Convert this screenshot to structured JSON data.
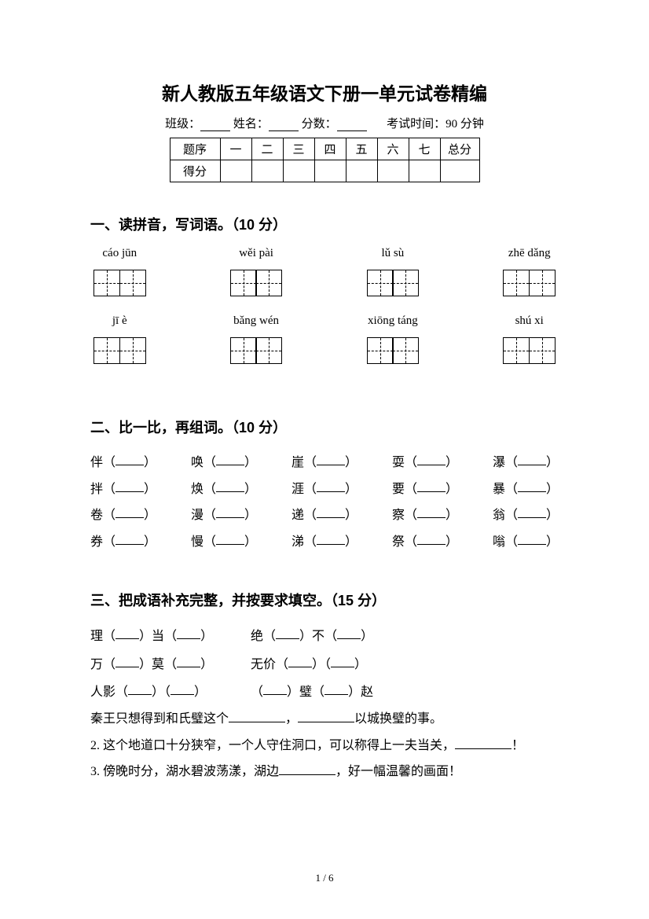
{
  "title": "新人教版五年级语文下册一单元试卷精编",
  "info": {
    "class_label": "班级：",
    "name_label": "姓名：",
    "score_label": "分数：",
    "exam_time": "考试时间：90 分钟"
  },
  "score_table": {
    "row1": [
      "题序",
      "一",
      "二",
      "三",
      "四",
      "五",
      "六",
      "七",
      "总分"
    ],
    "row2_label": "得分"
  },
  "section1": {
    "title": "一、读拼音，写词语。（10 分）",
    "row1": [
      "cáo jūn",
      "wěi pài",
      "lǔ sù",
      "zhē dǎng"
    ],
    "row2": [
      "jī è",
      "bǎng wén",
      "xiōng táng",
      "shú xi"
    ]
  },
  "section2": {
    "title": "二、比一比，再组词。（10 分）",
    "rows": [
      [
        "伴",
        "唤",
        "崖",
        "耍",
        "瀑"
      ],
      [
        "拌",
        "焕",
        "涯",
        "要",
        "暴"
      ],
      [
        "卷",
        "漫",
        "递",
        "察",
        "翁"
      ],
      [
        "券",
        "慢",
        "涕",
        "祭",
        "嗡"
      ]
    ]
  },
  "section3": {
    "title": "三、把成语补充完整，并按要求填空。（15 分）",
    "idioms": [
      {
        "a1": "理",
        "a2": "当",
        "b1": "绝",
        "b2": "不"
      },
      {
        "a1": "万",
        "a2": "莫",
        "b1": "无价",
        "b2": ""
      },
      {
        "a1": "人影",
        "a2": "",
        "b1": "",
        "b2": "璧",
        "b3": "赵"
      }
    ],
    "sentences": {
      "s1a": "秦王只想得到和氏璧这个",
      "s1b": "，",
      "s1c": "以城换璧的事。",
      "s2": "2. 这个地道口十分狭窄，一个人守住洞口，可以称得上一夫当关，",
      "s2end": "！",
      "s3a": "3. 傍晚时分，湖水碧波荡漾，湖边",
      "s3b": "，好一幅温馨的画面！"
    }
  },
  "page_num": "1 / 6"
}
